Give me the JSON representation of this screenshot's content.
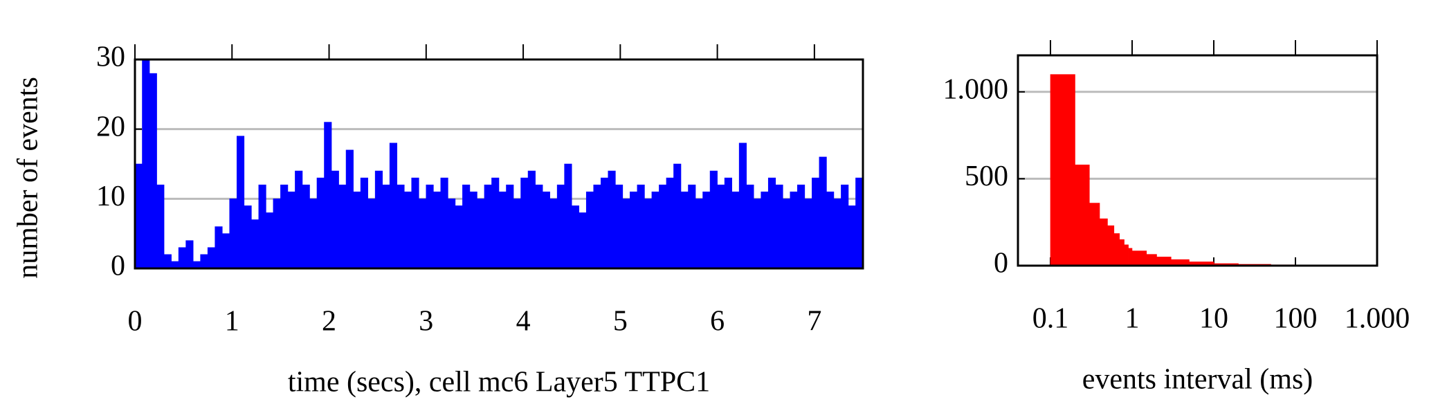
{
  "chart_data": [
    {
      "type": "histogram",
      "xlabel": "time (secs), cell mc6 Layer5 TTPC1",
      "ylabel": "number of events",
      "color": "#0000ff",
      "bins": [
        0,
        0.075,
        0.15,
        0.225,
        0.3,
        0.375,
        0.45,
        0.525,
        0.6,
        0.675,
        0.75,
        0.825,
        0.9,
        0.975,
        1.05,
        1.125,
        1.2,
        1.275,
        1.35,
        1.425,
        1.5,
        1.575,
        1.65,
        1.725,
        1.8,
        1.875,
        1.95,
        2.025,
        2.1,
        2.175,
        2.25,
        2.325,
        2.4,
        2.475,
        2.55,
        2.625,
        2.7,
        2.775,
        2.85,
        2.925,
        3,
        3.075,
        3.15,
        3.225,
        3.3,
        3.375,
        3.45,
        3.525,
        3.6,
        3.675,
        3.75,
        3.825,
        3.9,
        3.975,
        4.05,
        4.125,
        4.2,
        4.275,
        4.35,
        4.425,
        4.5,
        4.575,
        4.65,
        4.725,
        4.8,
        4.875,
        4.95,
        5.025,
        5.1,
        5.175,
        5.25,
        5.325,
        5.4,
        5.475,
        5.55,
        5.625,
        5.7,
        5.775,
        5.85,
        5.925,
        6,
        6.075,
        6.15,
        6.225,
        6.3,
        6.375,
        6.45,
        6.525,
        6.6,
        6.675,
        6.75,
        6.825,
        6.9,
        6.975,
        7.05,
        7.125,
        7.2,
        7.275,
        7.35,
        7.425,
        7.5
      ],
      "values": [
        15,
        30,
        28,
        12,
        2,
        1,
        3,
        4,
        1,
        2,
        3,
        6,
        5,
        10,
        19,
        9,
        7,
        12,
        8,
        10,
        12,
        11,
        14,
        12,
        10,
        13,
        21,
        14,
        12,
        17,
        11,
        13,
        10,
        14,
        12,
        18,
        12,
        11,
        13,
        10,
        12,
        11,
        13,
        10,
        9,
        12,
        11,
        10,
        12,
        13,
        11,
        12,
        10,
        13,
        14,
        12,
        11,
        10,
        12,
        15,
        9,
        8,
        11,
        12,
        13,
        14,
        12,
        10,
        11,
        12,
        10,
        11,
        12,
        13,
        15,
        11,
        12,
        10,
        11,
        14,
        12,
        13,
        11,
        18,
        12,
        10,
        11,
        13,
        12,
        10,
        11,
        12,
        10,
        13,
        16,
        11,
        10,
        12,
        9,
        13
      ],
      "xlim": [
        0,
        7.5
      ],
      "ylim": [
        0,
        30
      ],
      "xticks": [
        0,
        1,
        2,
        3,
        4,
        5,
        6,
        7
      ],
      "yticks": [
        0,
        10,
        20,
        30
      ],
      "grid": true
    },
    {
      "type": "histogram",
      "xlabel": "events interval (ms)",
      "color": "#ff0000",
      "log_x": true,
      "bins": [
        0.1,
        0.2,
        0.3,
        0.4,
        0.5,
        0.6,
        0.7,
        0.8,
        0.9,
        1,
        1.5,
        2,
        3,
        5,
        10,
        20,
        50,
        100,
        1000
      ],
      "values": [
        1100,
        580,
        360,
        270,
        230,
        185,
        150,
        120,
        100,
        85,
        65,
        50,
        35,
        22,
        12,
        8,
        5,
        3
      ],
      "xlim": [
        0.04,
        1000
      ],
      "ylim": [
        0,
        1210
      ],
      "xticks": [
        0.1,
        1,
        10,
        100,
        {
          "value": 1000,
          "label": "1.000"
        }
      ],
      "yticks": [
        0,
        500,
        {
          "value": 1000,
          "label": "1.000"
        }
      ],
      "grid": true
    }
  ]
}
